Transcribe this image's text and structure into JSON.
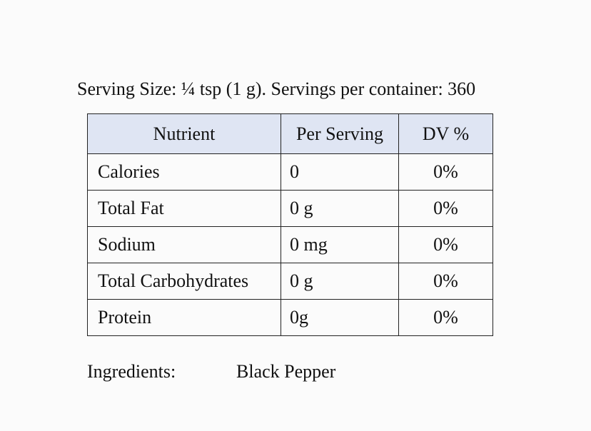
{
  "serving_size": "Serving Size: ¼ tsp (1 g). Servings per container: 360",
  "table": {
    "headers": [
      "Nutrient",
      "Per Serving",
      "DV %"
    ],
    "rows": [
      [
        "Calories",
        "0",
        "0%"
      ],
      [
        "Total Fat",
        "0 g",
        "0%"
      ],
      [
        "Sodium",
        "0 mg",
        "0%"
      ],
      [
        "Total Carbohydrates",
        "0 g",
        "0%"
      ],
      [
        "Protein",
        "0g",
        "0%"
      ]
    ]
  },
  "ingredients": {
    "label": "Ingredients:",
    "value": "Black Pepper"
  }
}
